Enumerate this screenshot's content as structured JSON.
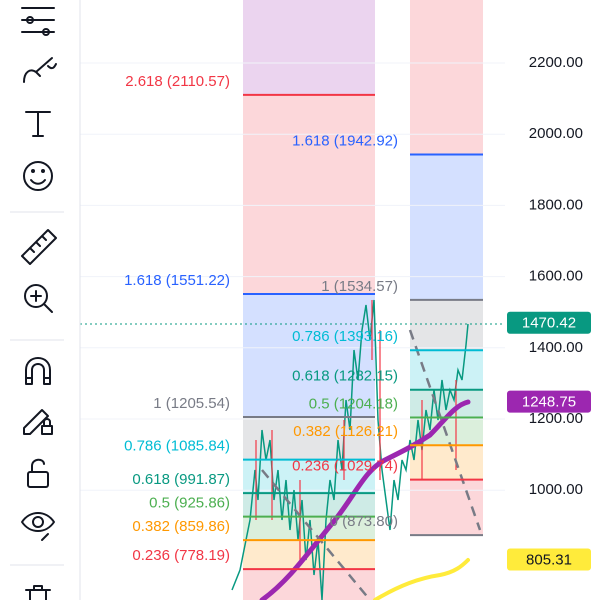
{
  "price_axis": {
    "ylim": [
      691.6,
      2377
    ],
    "ticks": [
      {
        "value": 2200,
        "label": "2200.00"
      },
      {
        "value": 2000,
        "label": "2000.00"
      },
      {
        "value": 1800,
        "label": "1800.00"
      },
      {
        "value": 1600,
        "label": "1600.00"
      },
      {
        "value": 1400,
        "label": "1400.00"
      },
      {
        "value": 1200,
        "label": "1200.00"
      },
      {
        "value": 1000,
        "label": "1000.00"
      }
    ]
  },
  "badges": [
    {
      "value": 1470.42,
      "label": "1470.42",
      "color": "#089981",
      "text_color": "#ffffff"
    },
    {
      "value": 1248.75,
      "label": "1248.75",
      "color": "#9c27b0",
      "text_color": "#ffffff"
    },
    {
      "value": 805.31,
      "label": "805.31",
      "color": "#ffeb3b",
      "text_color": "#131722"
    }
  ],
  "fib_sets": [
    {
      "top_color": "#9c27b0",
      "levels": [
        {
          "value": 2110.57,
          "label": "2.618 (2110.57)",
          "color": "#f23645"
        },
        {
          "value": 1551.22,
          "label": "1.618 (1551.22)",
          "color": "#2962ff"
        },
        {
          "value": 1205.54,
          "label": "1 (1205.54)",
          "color": "#787b86"
        },
        {
          "value": 1085.84,
          "label": "0.786 (1085.84)",
          "color": "#00bcd4"
        },
        {
          "value": 991.87,
          "label": "0.618 (991.87)",
          "color": "#089981"
        },
        {
          "value": 925.86,
          "label": "0.5 (925.86)",
          "color": "#4caf50"
        },
        {
          "value": 859.86,
          "label": "0.382 (859.86)",
          "color": "#ff9800"
        },
        {
          "value": 778.19,
          "label": "0.236 (778.19)",
          "color": "#f23645"
        }
      ]
    },
    {
      "top_color": "#f23645",
      "levels": [
        {
          "value": 1942.92,
          "label": "1.618 (1942.92)",
          "color": "#2962ff"
        },
        {
          "value": 1534.57,
          "label": "1 (1534.57)",
          "color": "#787b86"
        },
        {
          "value": 1393.16,
          "label": "0.786 (1393.16)",
          "color": "#00bcd4"
        },
        {
          "value": 1282.15,
          "label": "0.618 (1282.15)",
          "color": "#089981"
        },
        {
          "value": 1204.18,
          "label": "0.5 (1204.18)",
          "color": "#4caf50"
        },
        {
          "value": 1126.21,
          "label": "0.382 (1126.21)",
          "color": "#ff9800"
        },
        {
          "value": 1029.74,
          "label": "0.236 (1029.74)",
          "color": "#f23645"
        },
        {
          "value": 873.8,
          "label": "0 (873.80)",
          "color": "#787b86"
        }
      ]
    }
  ]
}
